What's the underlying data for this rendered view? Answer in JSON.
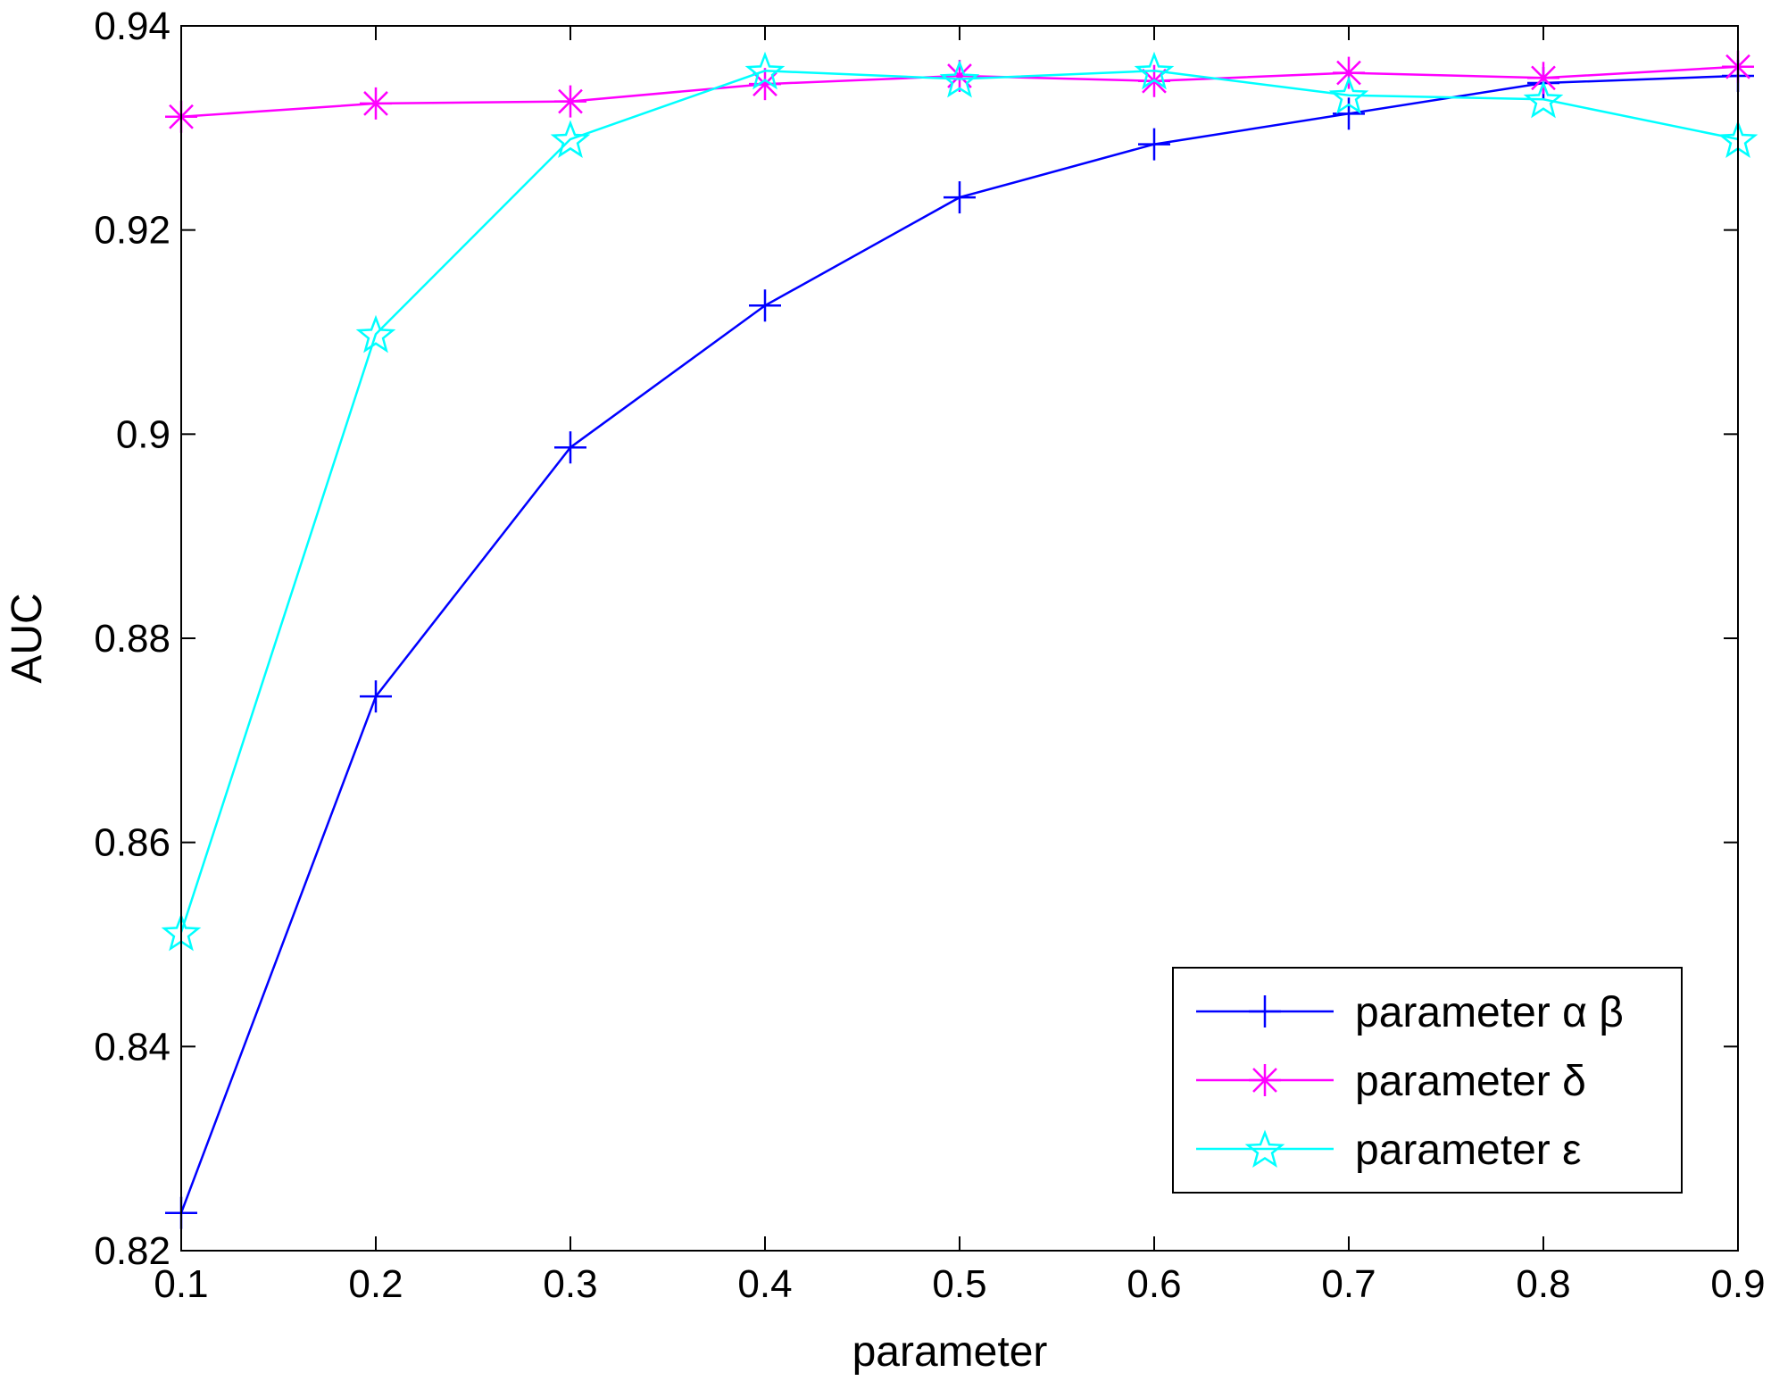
{
  "chart_data": {
    "type": "line",
    "xlabel": "parameter",
    "ylabel": "AUC",
    "xlim": [
      0.1,
      0.9
    ],
    "ylim": [
      0.82,
      0.94
    ],
    "xticks": [
      "0.1",
      "0.2",
      "0.3",
      "0.4",
      "0.5",
      "0.6",
      "0.7",
      "0.8",
      "0.9"
    ],
    "yticks": [
      "0.82",
      "0.84",
      "0.86",
      "0.88",
      "0.9",
      "0.92",
      "0.94"
    ],
    "grid": false,
    "legend_position": "bottom-right",
    "x": [
      0.1,
      0.2,
      0.3,
      0.4,
      0.5,
      0.6,
      0.7,
      0.8,
      0.9
    ],
    "series": [
      {
        "name": "parameter α β",
        "color": "#0000ff",
        "marker": "plus",
        "values": [
          0.8237,
          0.8743,
          0.8987,
          0.9126,
          0.9232,
          0.9284,
          0.9314,
          0.9344,
          0.9351
        ]
      },
      {
        "name": "parameter δ",
        "color": "#ff00ff",
        "marker": "asterisk",
        "values": [
          0.9311,
          0.9324,
          0.9326,
          0.9343,
          0.9351,
          0.9346,
          0.9354,
          0.9349,
          0.936
        ]
      },
      {
        "name": "parameter ε",
        "color": "#00ffff",
        "marker": "star",
        "values": [
          0.8512,
          0.9098,
          0.9289,
          0.9356,
          0.9348,
          0.9356,
          0.9332,
          0.9328,
          0.9289
        ]
      }
    ]
  }
}
